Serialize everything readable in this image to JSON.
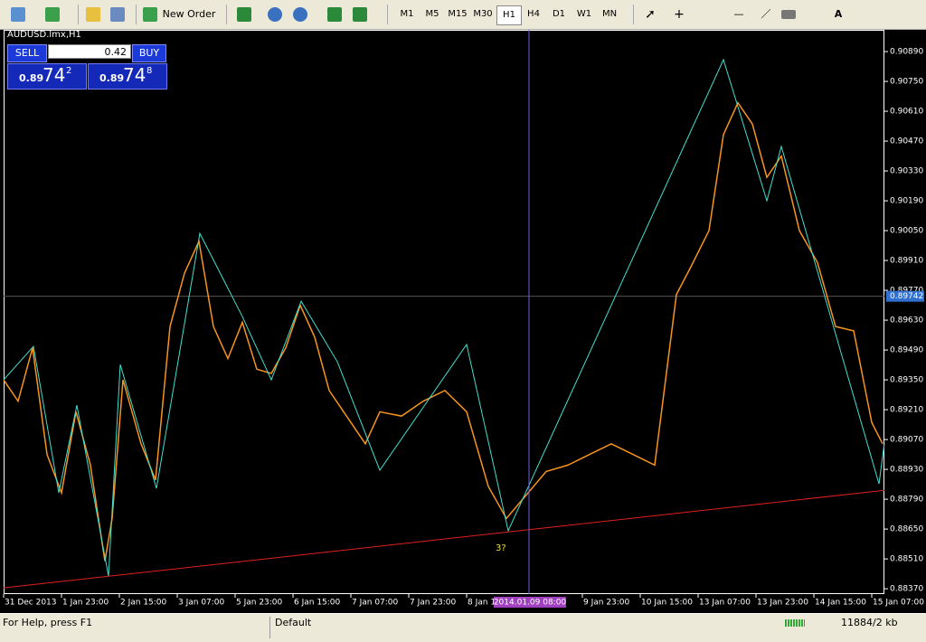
{
  "toolbar": {
    "new_order": "New Order",
    "timeframes": [
      "M1",
      "M5",
      "M15",
      "M30",
      "H1",
      "H4",
      "D1",
      "W1",
      "MN"
    ],
    "active_timeframe": "H1",
    "text_tool": "A"
  },
  "trade_panel": {
    "symbol": "AUDUSD.lmx,H1",
    "sell": "SELL",
    "buy": "BUY",
    "lots": "0.42",
    "bid": {
      "big": "0.89",
      "pips": "74",
      "frac": "2"
    },
    "ask": {
      "big": "0.89",
      "pips": "74",
      "frac": "8"
    }
  },
  "chart_data": {
    "type": "line",
    "ylim": [
      0.88345,
      0.90992
    ],
    "xlim": [
      0,
      243.5
    ],
    "yticks": [
      {
        "value": 0.9089,
        "label": "0.90890"
      },
      {
        "value": 0.9075,
        "label": "0.90750"
      },
      {
        "value": 0.9061,
        "label": "0.90610"
      },
      {
        "value": 0.9047,
        "label": "0.90470"
      },
      {
        "value": 0.9033,
        "label": "0.90330"
      },
      {
        "value": 0.9019,
        "label": "0.90190"
      },
      {
        "value": 0.9005,
        "label": "0.90050"
      },
      {
        "value": 0.8991,
        "label": "0.89910"
      },
      {
        "value": 0.8977,
        "label": "0.89770"
      },
      {
        "value": 0.8963,
        "label": "0.89630"
      },
      {
        "value": 0.8949,
        "label": "0.89490"
      },
      {
        "value": 0.8935,
        "label": "0.89350"
      },
      {
        "value": 0.8921,
        "label": "0.89210"
      },
      {
        "value": 0.8907,
        "label": "0.89070"
      },
      {
        "value": 0.8893,
        "label": "0.88930"
      },
      {
        "value": 0.8879,
        "label": "0.88790"
      },
      {
        "value": 0.8865,
        "label": "0.88650"
      },
      {
        "value": 0.8851,
        "label": "0.88510"
      },
      {
        "value": 0.8837,
        "label": "0.88370"
      }
    ],
    "xticks": [
      {
        "value": 0,
        "label": "31 Dec 2013"
      },
      {
        "value": 16,
        "label": "1 Jan 23:00"
      },
      {
        "value": 32,
        "label": "2 Jan 15:00"
      },
      {
        "value": 48,
        "label": "3 Jan 07:00"
      },
      {
        "value": 64,
        "label": "5 Jan 23:00"
      },
      {
        "value": 80,
        "label": "6 Jan 15:00"
      },
      {
        "value": 96,
        "label": "7 Jan 07:00"
      },
      {
        "value": 112,
        "label": "7 Jan 23:00"
      },
      {
        "value": 128,
        "label": "8 Jan 15:00"
      },
      {
        "value": 160,
        "label": "9 Jan 23:00"
      },
      {
        "value": 176,
        "label": "10 Jan 15:00"
      },
      {
        "value": 192,
        "label": "13 Jan 07:00"
      },
      {
        "value": 208,
        "label": "13 Jan 23:00"
      },
      {
        "value": 224,
        "label": "14 Jan 15:00"
      },
      {
        "value": 240,
        "label": "15 Jan 07:00"
      }
    ],
    "series": [
      {
        "color": "#f7941d",
        "x": [
          0,
          4,
          8,
          12,
          16,
          20,
          24,
          28,
          30,
          33,
          38,
          42,
          46,
          50,
          54,
          58,
          62,
          66,
          70,
          74,
          78,
          82,
          86,
          90,
          96,
          100,
          104,
          110,
          116,
          122,
          128,
          134,
          139,
          144,
          150,
          156,
          162,
          168,
          174,
          180,
          186,
          190,
          195,
          199,
          203,
          207,
          211,
          215,
          220,
          225,
          230,
          235,
          240,
          243
        ],
        "values": [
          0.8935,
          0.8925,
          0.895,
          0.89,
          0.8882,
          0.892,
          0.8895,
          0.885,
          0.887,
          0.8935,
          0.8905,
          0.8888,
          0.896,
          0.8985,
          0.9,
          0.896,
          0.8945,
          0.8962,
          0.894,
          0.8938,
          0.895,
          0.897,
          0.8955,
          0.893,
          0.8915,
          0.8905,
          0.892,
          0.8918,
          0.8925,
          0.893,
          0.892,
          0.8885,
          0.887,
          0.888,
          0.8892,
          0.8895,
          0.89,
          0.8905,
          0.89,
          0.8895,
          0.8975,
          0.8988,
          0.9005,
          0.905,
          0.9065,
          0.9055,
          0.903,
          0.904,
          0.9005,
          0.899,
          0.896,
          0.8958,
          0.8915,
          0.8905
        ]
      },
      {
        "color": "#40e0d0",
        "x": [
          0,
          8.25,
          15.25,
          20.25,
          29,
          32.25,
          42.25,
          54.25,
          66,
          74,
          82.25,
          92.25,
          104,
          128,
          139.5,
          199,
          211,
          215,
          242,
          243.5
        ],
        "values": [
          0.8935,
          0.89507,
          0.8882,
          0.89231,
          0.88429,
          0.89422,
          0.88841,
          0.90037,
          0.89647,
          0.8935,
          0.89719,
          0.89435,
          0.88926,
          0.89516,
          0.88642,
          0.90852,
          0.9019,
          0.90445,
          0.88862,
          0.89053
        ]
      }
    ],
    "trend_line": {
      "color": "#e02020",
      "x": [
        0,
        243.5
      ],
      "values": [
        0.88374,
        0.88832
      ]
    },
    "current_price": 0.89742,
    "crosshair": {
      "x": 145.25,
      "label": "2014.01.09 08:00"
    },
    "annotation": {
      "x": 139.5,
      "y": 0.8851,
      "text": "3?"
    }
  },
  "status_bar": {
    "help": "For Help, press F1",
    "profile": "Default",
    "traffic": "11884/2 kb"
  }
}
